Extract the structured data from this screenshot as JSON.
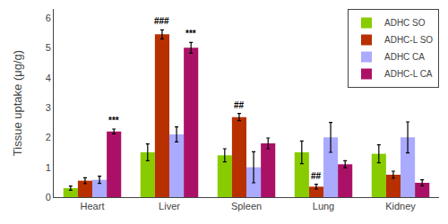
{
  "chart_data": {
    "type": "bar",
    "categories": [
      "Heart",
      "Liver",
      "Spleen",
      "Lung",
      "Kidney"
    ],
    "series": [
      {
        "name": "ADHC SO",
        "color": "#88cc00",
        "values": [
          0.3,
          1.5,
          1.4,
          1.5,
          1.45
        ],
        "errors": [
          0.07,
          0.28,
          0.22,
          0.38,
          0.3
        ]
      },
      {
        "name": "ADHC-L SO",
        "color": "#b83000",
        "values": [
          0.55,
          5.45,
          2.68,
          0.35,
          0.75
        ],
        "errors": [
          0.1,
          0.15,
          0.12,
          0.08,
          0.12
        ]
      },
      {
        "name": "ADHC CA",
        "color": "#aaaaff",
        "values": [
          0.58,
          2.1,
          1.0,
          2.0,
          2.0
        ],
        "errors": [
          0.12,
          0.25,
          0.52,
          0.5,
          0.52
        ]
      },
      {
        "name": "ADHC-L CA",
        "color": "#aa1166",
        "values": [
          2.2,
          5.0,
          1.8,
          1.1,
          0.48
        ],
        "errors": [
          0.08,
          0.18,
          0.18,
          0.12,
          0.1
        ]
      }
    ],
    "annotations": [
      {
        "category": "Heart",
        "series": "ADHC-L CA",
        "text": "***"
      },
      {
        "category": "Liver",
        "series": "ADHC-L SO",
        "text": "###"
      },
      {
        "category": "Liver",
        "series": "ADHC-L CA",
        "text": "***"
      },
      {
        "category": "Spleen",
        "series": "ADHC-L SO",
        "text": "##"
      },
      {
        "category": "Lung",
        "series": "ADHC-L SO",
        "text": "##"
      }
    ],
    "ylabel": "Tissue uptake (μg/g)",
    "ylim": [
      0,
      6.3
    ],
    "yticks": [
      0,
      1,
      2,
      3,
      4,
      5,
      6
    ],
    "grid": false,
    "legend": "upper right"
  }
}
